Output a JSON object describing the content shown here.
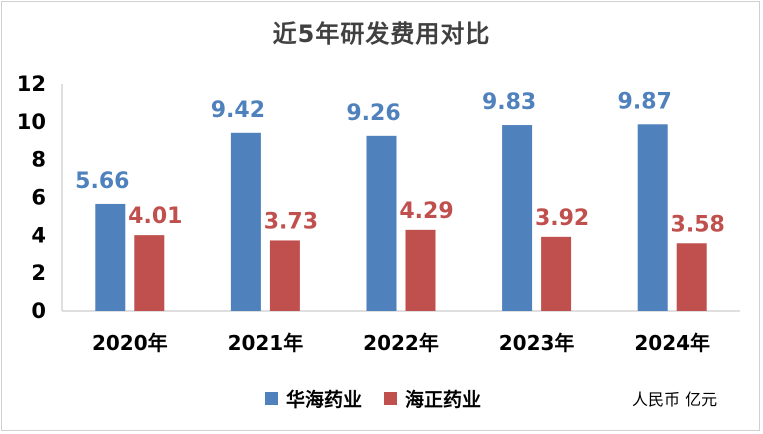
{
  "chart_data": {
    "type": "bar",
    "title": "近5年研发费用对比",
    "categories": [
      "2020年",
      "2021年",
      "2022年",
      "2023年",
      "2024年"
    ],
    "series": [
      {
        "name": "华海药业",
        "color": "#4f81bd",
        "label_color": "#4f81bd",
        "values": [
          5.66,
          9.42,
          9.26,
          9.83,
          9.87
        ]
      },
      {
        "name": "海正药业",
        "color": "#c0504d",
        "label_color": "#c0504d",
        "values": [
          4.01,
          3.73,
          4.29,
          3.92,
          3.58
        ]
      }
    ],
    "ylim": [
      0,
      12
    ],
    "yticks": [
      "0",
      "2",
      "4",
      "6",
      "8",
      "10",
      "12"
    ],
    "legend": "bottom",
    "grid": false,
    "unit_note": "人民币 亿元"
  }
}
